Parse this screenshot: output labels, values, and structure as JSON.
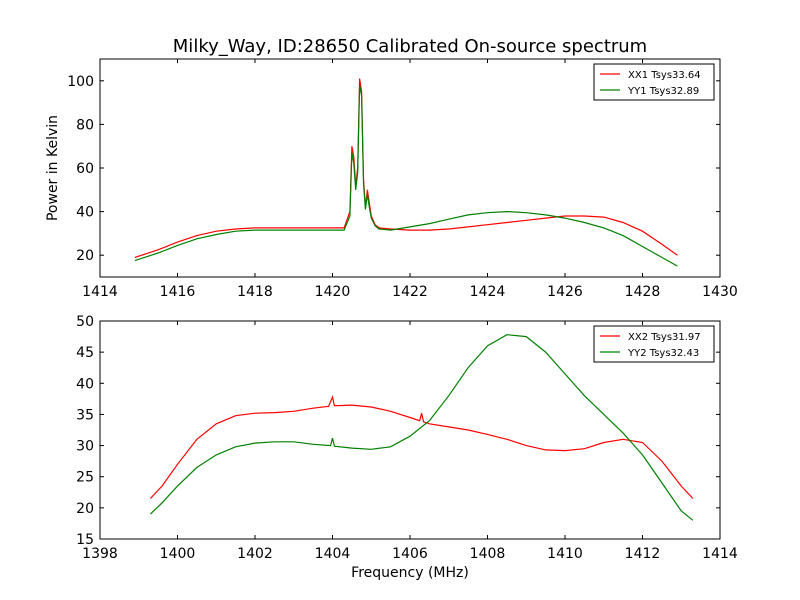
{
  "chart_data": [
    {
      "type": "line",
      "title": "Milky_Way, ID:28650 Calibrated On-source spectrum",
      "xlabel": "",
      "ylabel": "Power in Kelvin",
      "xlim": [
        1414,
        1430
      ],
      "ylim": [
        10,
        110
      ],
      "xticks": [
        1414,
        1416,
        1418,
        1420,
        1422,
        1424,
        1426,
        1428,
        1430
      ],
      "yticks": [
        20,
        40,
        60,
        80,
        100
      ],
      "grid": false,
      "legend_position": "top-right",
      "series": [
        {
          "name": "XX1 Tsys33.64",
          "color": "#ff0000",
          "points": [
            [
              1414.9,
              19
            ],
            [
              1415.5,
              22.5
            ],
            [
              1416.0,
              26
            ],
            [
              1416.5,
              29
            ],
            [
              1417.0,
              31
            ],
            [
              1417.5,
              32
            ],
            [
              1418.0,
              32.5
            ],
            [
              1418.5,
              32.5
            ],
            [
              1419.0,
              32.5
            ],
            [
              1419.5,
              32.5
            ],
            [
              1420.0,
              32.5
            ],
            [
              1420.3,
              32.5
            ],
            [
              1420.45,
              40
            ],
            [
              1420.5,
              70
            ],
            [
              1420.55,
              65
            ],
            [
              1420.6,
              52
            ],
            [
              1420.65,
              60
            ],
            [
              1420.7,
              101
            ],
            [
              1420.75,
              95
            ],
            [
              1420.8,
              55
            ],
            [
              1420.85,
              42
            ],
            [
              1420.9,
              50
            ],
            [
              1420.95,
              44
            ],
            [
              1421.0,
              38
            ],
            [
              1421.1,
              34
            ],
            [
              1421.2,
              32.5
            ],
            [
              1421.5,
              32
            ],
            [
              1422.0,
              31.5
            ],
            [
              1422.5,
              31.5
            ],
            [
              1423.0,
              32
            ],
            [
              1423.5,
              33
            ],
            [
              1424.0,
              34
            ],
            [
              1424.5,
              35
            ],
            [
              1425.0,
              36
            ],
            [
              1425.5,
              37
            ],
            [
              1426.0,
              38
            ],
            [
              1426.5,
              38
            ],
            [
              1427.0,
              37.5
            ],
            [
              1427.5,
              35
            ],
            [
              1428.0,
              31
            ],
            [
              1428.5,
              25
            ],
            [
              1428.9,
              20
            ]
          ]
        },
        {
          "name": "YY1 Tsys32.89",
          "color": "#008000",
          "points": [
            [
              1414.9,
              17.5
            ],
            [
              1415.5,
              21
            ],
            [
              1416.0,
              24.5
            ],
            [
              1416.5,
              27.5
            ],
            [
              1417.0,
              29.5
            ],
            [
              1417.5,
              31
            ],
            [
              1418.0,
              31.5
            ],
            [
              1418.5,
              31.5
            ],
            [
              1419.0,
              31.5
            ],
            [
              1419.5,
              31.5
            ],
            [
              1420.0,
              31.5
            ],
            [
              1420.3,
              31.5
            ],
            [
              1420.45,
              38
            ],
            [
              1420.5,
              67
            ],
            [
              1420.55,
              62
            ],
            [
              1420.6,
              50
            ],
            [
              1420.65,
              58
            ],
            [
              1420.7,
              98
            ],
            [
              1420.75,
              93
            ],
            [
              1420.8,
              53
            ],
            [
              1420.85,
              41
            ],
            [
              1420.9,
              48
            ],
            [
              1420.95,
              42
            ],
            [
              1421.0,
              37
            ],
            [
              1421.1,
              33.5
            ],
            [
              1421.2,
              32
            ],
            [
              1421.5,
              31.5
            ],
            [
              1422.0,
              33
            ],
            [
              1422.5,
              34.5
            ],
            [
              1423.0,
              36.5
            ],
            [
              1423.5,
              38.5
            ],
            [
              1424.0,
              39.5
            ],
            [
              1424.5,
              40
            ],
            [
              1425.0,
              39.5
            ],
            [
              1425.5,
              38.5
            ],
            [
              1426.0,
              37
            ],
            [
              1426.5,
              35
            ],
            [
              1427.0,
              32.5
            ],
            [
              1427.5,
              29
            ],
            [
              1428.0,
              24
            ],
            [
              1428.5,
              19
            ],
            [
              1428.9,
              15
            ]
          ]
        }
      ]
    },
    {
      "type": "line",
      "title": "",
      "xlabel": "Frequency (MHz)",
      "ylabel": "",
      "xlim": [
        1398,
        1414
      ],
      "ylim": [
        15,
        50
      ],
      "xticks": [
        1398,
        1400,
        1402,
        1404,
        1406,
        1408,
        1410,
        1412,
        1414
      ],
      "yticks": [
        15,
        20,
        25,
        30,
        35,
        40,
        45,
        50
      ],
      "grid": false,
      "legend_position": "top-right",
      "series": [
        {
          "name": "XX2 Tsys31.97",
          "color": "#ff0000",
          "points": [
            [
              1399.3,
              21.5
            ],
            [
              1399.6,
              23.5
            ],
            [
              1400.0,
              27
            ],
            [
              1400.5,
              31
            ],
            [
              1401.0,
              33.5
            ],
            [
              1401.5,
              34.8
            ],
            [
              1402.0,
              35.2
            ],
            [
              1402.5,
              35.3
            ],
            [
              1403.0,
              35.5
            ],
            [
              1403.5,
              36
            ],
            [
              1403.9,
              36.3
            ],
            [
              1404.0,
              37.8
            ],
            [
              1404.05,
              36.4
            ],
            [
              1404.5,
              36.5
            ],
            [
              1405.0,
              36.2
            ],
            [
              1405.5,
              35.5
            ],
            [
              1406.0,
              34.5
            ],
            [
              1406.25,
              34
            ],
            [
              1406.3,
              35.2
            ],
            [
              1406.35,
              33.8
            ],
            [
              1406.5,
              33.5
            ],
            [
              1407.0,
              33
            ],
            [
              1407.5,
              32.5
            ],
            [
              1408.0,
              31.8
            ],
            [
              1408.5,
              31
            ],
            [
              1409.0,
              30
            ],
            [
              1409.5,
              29.3
            ],
            [
              1410.0,
              29.2
            ],
            [
              1410.5,
              29.5
            ],
            [
              1411.0,
              30.5
            ],
            [
              1411.5,
              31
            ],
            [
              1412.0,
              30.5
            ],
            [
              1412.5,
              27.5
            ],
            [
              1413.0,
              23.5
            ],
            [
              1413.3,
              21.5
            ]
          ]
        },
        {
          "name": "YY2 Tsys32.43",
          "color": "#008000",
          "points": [
            [
              1399.3,
              19
            ],
            [
              1399.6,
              20.8
            ],
            [
              1400.0,
              23.5
            ],
            [
              1400.5,
              26.5
            ],
            [
              1401.0,
              28.5
            ],
            [
              1401.5,
              29.8
            ],
            [
              1402.0,
              30.4
            ],
            [
              1402.5,
              30.6
            ],
            [
              1403.0,
              30.6
            ],
            [
              1403.5,
              30.2
            ],
            [
              1403.95,
              30
            ],
            [
              1404.0,
              31.2
            ],
            [
              1404.05,
              29.9
            ],
            [
              1404.5,
              29.6
            ],
            [
              1405.0,
              29.4
            ],
            [
              1405.5,
              29.8
            ],
            [
              1406.0,
              31.5
            ],
            [
              1406.5,
              34
            ],
            [
              1407.0,
              38
            ],
            [
              1407.5,
              42.5
            ],
            [
              1408.0,
              46
            ],
            [
              1408.5,
              47.8
            ],
            [
              1409.0,
              47.5
            ],
            [
              1409.5,
              45
            ],
            [
              1410.0,
              41.5
            ],
            [
              1410.5,
              38
            ],
            [
              1411.0,
              35
            ],
            [
              1411.5,
              32
            ],
            [
              1412.0,
              28.5
            ],
            [
              1412.5,
              24
            ],
            [
              1413.0,
              19.5
            ],
            [
              1413.3,
              18
            ]
          ]
        }
      ]
    }
  ]
}
